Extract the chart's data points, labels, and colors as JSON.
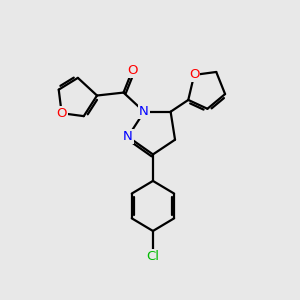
{
  "background_color": "#e8e8e8",
  "bond_color": "#000000",
  "bond_width": 1.6,
  "atom_colors": {
    "O": "#ff0000",
    "N": "#0000ff",
    "Cl": "#00bb00",
    "C": "#000000"
  },
  "font_size_atom": 9.5
}
